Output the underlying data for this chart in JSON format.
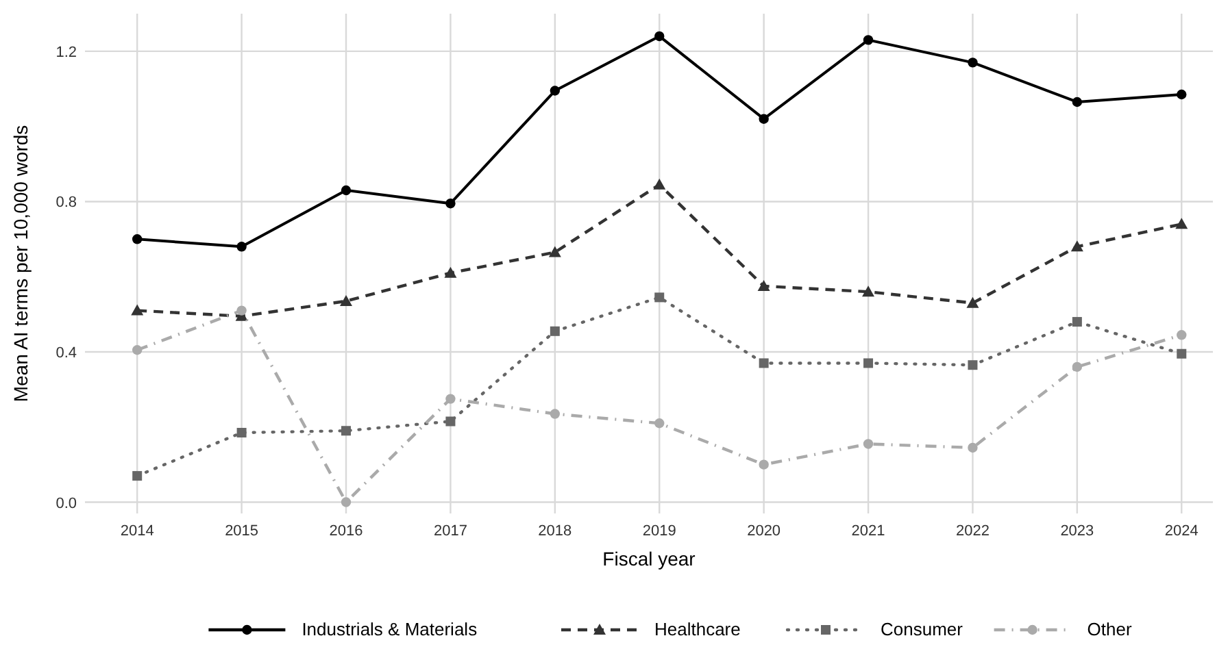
{
  "chart_data": {
    "type": "line",
    "xlabel": "Fiscal year",
    "ylabel": "Mean AI terms per 10,000 words",
    "x": [
      2014,
      2015,
      2016,
      2017,
      2018,
      2019,
      2020,
      2021,
      2022,
      2023,
      2024
    ],
    "xlim": [
      2013.5,
      2024.3
    ],
    "xticks": [
      2014,
      2015,
      2016,
      2017,
      2018,
      2019,
      2020,
      2021,
      2022,
      2023,
      2024
    ],
    "ylim": [
      -0.03,
      1.3
    ],
    "yticks": [
      {
        "value": 0,
        "label": "0.0"
      },
      {
        "value": 0.4,
        "label": "0.4"
      },
      {
        "value": 0.8,
        "label": "0.8"
      },
      {
        "value": 1.2,
        "label": "1.2"
      }
    ],
    "grid": true,
    "legend": "bottom",
    "series": [
      {
        "name": "Industrials & Materials",
        "color": "#000000",
        "marker": "circle",
        "line_style": "solid",
        "values": [
          0.7,
          0.68,
          0.83,
          0.795,
          1.095,
          1.24,
          1.02,
          1.23,
          1.17,
          1.065,
          1.085
        ]
      },
      {
        "name": "Healthcare",
        "color": "#333333",
        "marker": "triangle",
        "line_style": "dashed",
        "values": [
          0.51,
          0.495,
          0.535,
          0.61,
          0.665,
          0.845,
          0.575,
          0.56,
          0.53,
          0.68,
          0.74
        ]
      },
      {
        "name": "Consumer",
        "color": "#666666",
        "marker": "square",
        "line_style": "dotted",
        "values": [
          0.07,
          0.185,
          0.19,
          0.215,
          0.455,
          0.545,
          0.37,
          0.37,
          0.365,
          0.48,
          0.395
        ]
      },
      {
        "name": "Other",
        "color": "#aaaaaa",
        "marker": "circle",
        "line_style": "dashdot",
        "values": [
          0.405,
          0.51,
          0.0,
          0.275,
          0.235,
          0.21,
          0.1,
          0.155,
          0.145,
          0.36,
          0.445
        ]
      }
    ]
  }
}
